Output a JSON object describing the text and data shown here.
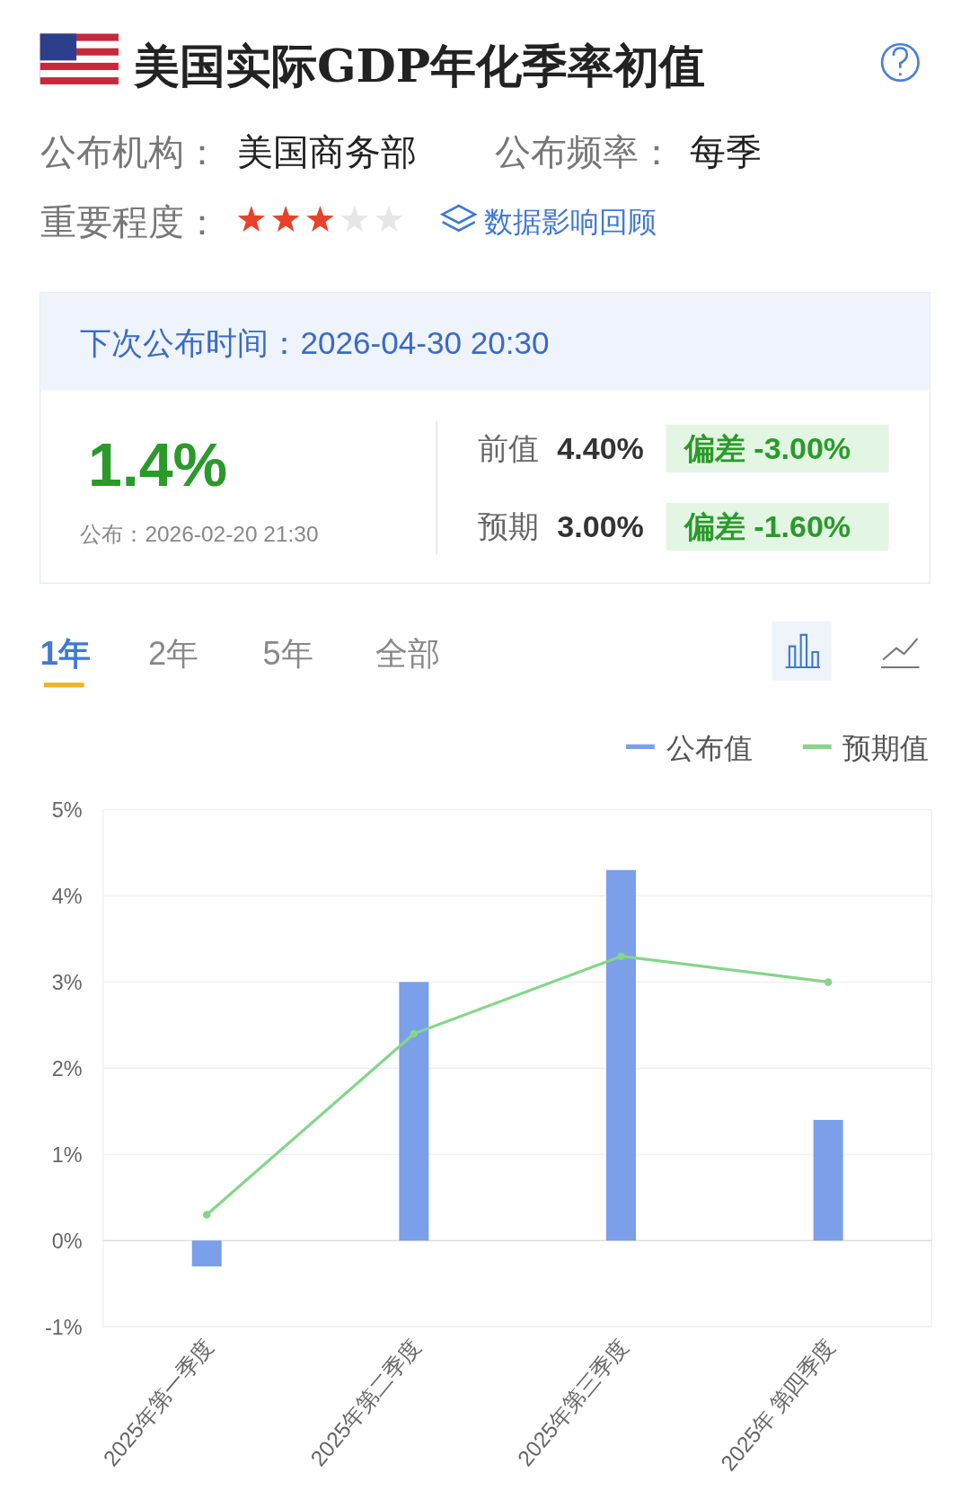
{
  "chart_data": {
    "type": "bar",
    "title": "美国实际GDP年化季率初值",
    "categories": [
      "2025年第一季度",
      "2025年第二季度",
      "2025年第三季度",
      "2025年 第四季度"
    ],
    "series": [
      {
        "name": "公布值",
        "color": "#7b9fe8",
        "values": [
          -0.3,
          3.0,
          4.3,
          1.4
        ]
      },
      {
        "name": "预期值",
        "type": "line",
        "color": "#85d68a",
        "values": [
          0.3,
          2.4,
          3.3,
          3.0
        ]
      }
    ],
    "ylim": [
      -1,
      5
    ],
    "yticks": [
      {
        "value": -1,
        "label": "-1%"
      },
      {
        "value": 0,
        "label": "0%"
      },
      {
        "value": 1,
        "label": "1%"
      },
      {
        "value": 2,
        "label": "2%"
      },
      {
        "value": 3,
        "label": "3%"
      },
      {
        "value": 4,
        "label": "4%"
      },
      {
        "value": 5,
        "label": "5%"
      }
    ],
    "grid": "y",
    "legend": "top right",
    "marker": "circle",
    "annotations": [
      "公布机构：",
      "美国商务部",
      "公布频率：",
      "每季",
      "重要程度：",
      "数据影响回顾",
      "下次公布时间：2026-04-30 20:30",
      "1.4%",
      "公布：2026-02-20 21:30",
      "前值",
      "4.40%",
      "偏差 -3.00%",
      "预期",
      "3.00%",
      "偏差 -1.60%",
      "1年",
      "2年",
      "5年",
      "全部"
    ]
  }
}
